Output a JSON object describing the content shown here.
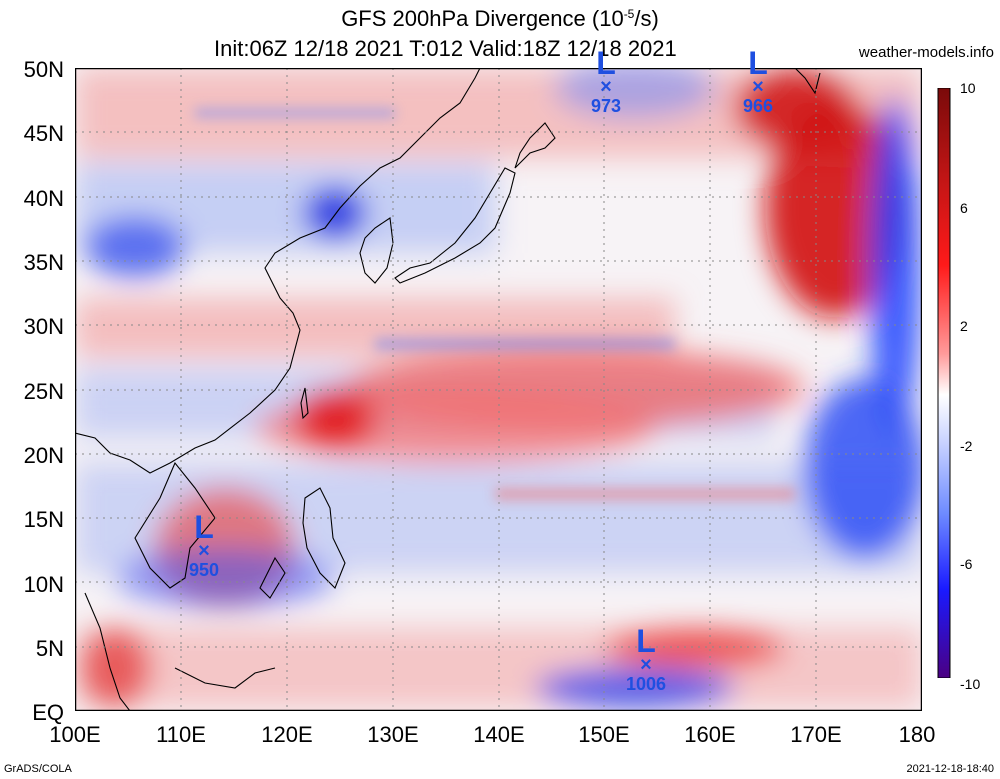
{
  "title": {
    "line1_pre": "GFS 200hPa Divergence (10",
    "line1_exp": "-5",
    "line1_post": "/s)",
    "line2": "Init:06Z 12/18 2021 T:012 Valid:18Z 12/18 2021",
    "site": "weather-models.info"
  },
  "axes": {
    "y_labels": [
      "50N",
      "45N",
      "40N",
      "35N",
      "30N",
      "25N",
      "20N",
      "15N",
      "10N",
      "5N",
      "EQ"
    ],
    "x_labels": [
      "100E",
      "110E",
      "120E",
      "130E",
      "140E",
      "150E",
      "160E",
      "170E",
      "180"
    ]
  },
  "colorbar": {
    "labels": [
      "10",
      "6",
      "2",
      "-2",
      "-6",
      "-10"
    ],
    "colors": [
      "#4b0082",
      "#1a1aff",
      "#6f8cff",
      "#dfe6ff",
      "#ffffff",
      "#ffd6d6",
      "#ff7070",
      "#ff1010",
      "#b01010",
      "#7a0a0a"
    ]
  },
  "lows": [
    {
      "symbol": "L",
      "marker": "×",
      "pressure": "973"
    },
    {
      "symbol": "L",
      "marker": "×",
      "pressure": "966"
    },
    {
      "symbol": "L",
      "marker": "×",
      "pressure": "950"
    },
    {
      "symbol": "L",
      "marker": "×",
      "pressure": "1006"
    }
  ],
  "footer": {
    "left": "GrADS/COLA",
    "right": "2021-12-18-18:40"
  }
}
